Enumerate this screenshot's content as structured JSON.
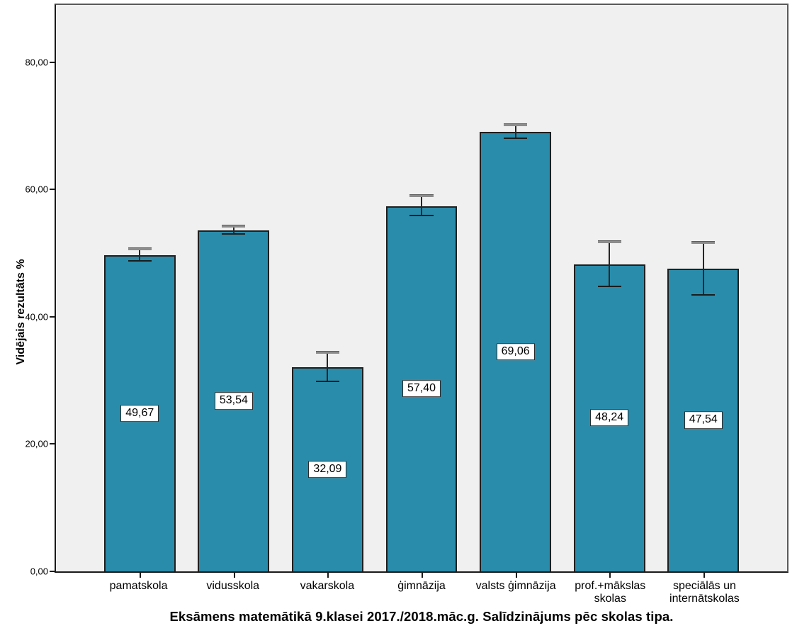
{
  "chart_data": {
    "type": "bar",
    "title": "Eksāmens matemātikā 9.klasei 2017./2018.māc.g. Salīdzinājums pēc skolas tipa.",
    "xlabel": "",
    "ylabel": "Vidējais rezultāts %",
    "categories": [
      "pamatskola",
      "vidusskola",
      "vakarskola",
      "ģimnāzija",
      "valsts ģimnāzija",
      "prof.+mākslas skolas",
      "speciālās un internātskolas"
    ],
    "category_lines": [
      [
        "pamatskola"
      ],
      [
        "vidusskola"
      ],
      [
        "vakarskola"
      ],
      [
        "ģimnāzija"
      ],
      [
        "valsts ģimnāzija"
      ],
      [
        "prof.+mākslas",
        "skolas"
      ],
      [
        "speciālās un",
        "internātskolas"
      ]
    ],
    "values": [
      49.67,
      53.54,
      32.09,
      57.4,
      69.06,
      48.24,
      47.54
    ],
    "value_labels": [
      "49,67",
      "53,54",
      "32,09",
      "57,40",
      "69,06",
      "48,24",
      "47,54"
    ],
    "error_ci": [
      0.85,
      0.55,
      2.2,
      1.5,
      0.95,
      3.5,
      4.05
    ],
    "yticks": [
      {
        "value": 0,
        "label": "0,00"
      },
      {
        "value": 20,
        "label": "20,00"
      },
      {
        "value": 40,
        "label": "40,00"
      },
      {
        "value": 60,
        "label": "60,00"
      },
      {
        "value": 80,
        "label": "80,00"
      }
    ],
    "ylim": [
      0,
      89
    ],
    "grid": false,
    "legend": "none",
    "colors": {
      "bar_fill": "#2a8cab",
      "bar_border": "#1f1f1f",
      "plot_background": "#f0f0f0",
      "page_background": "#ffffff",
      "error_line": "#262626",
      "error_cap_top": "#8c8c8c",
      "error_cap_bottom": "#1c1c1c",
      "text": "#000000"
    }
  }
}
